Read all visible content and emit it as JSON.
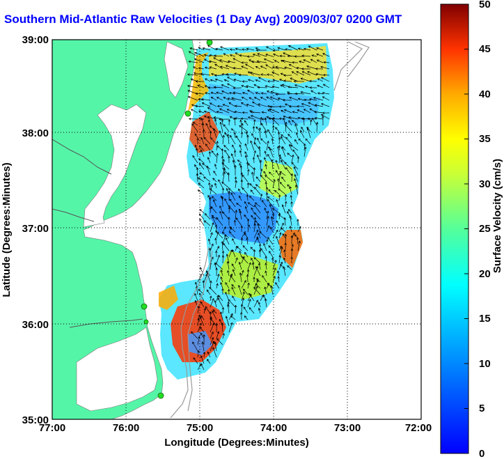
{
  "title": "Southern Mid-Atlantic Raw Velocities (1 Day Avg) 2009/03/07 0200 GMT",
  "x_axis": {
    "label": "Longitude (Degrees:Minutes)",
    "ticks": [
      "77:00",
      "76:00",
      "75:00",
      "74:00",
      "73:00",
      "72:00"
    ]
  },
  "y_axis": {
    "label": "Latitude (Degrees:Minutes)",
    "ticks": [
      "39:00",
      "38:00",
      "37:00",
      "36:00",
      "35:00"
    ]
  },
  "colorbar": {
    "label": "Surface Velocity (cm/s)",
    "ticks": [
      "50",
      "45",
      "40",
      "35",
      "30",
      "25",
      "20",
      "15",
      "10",
      "5",
      "0"
    ],
    "range": [
      0,
      50
    ],
    "colormap": "jet"
  },
  "colors": {
    "land": "#55f5a8",
    "title": "#0000ff",
    "grid": "#000000",
    "station": "#22dd22"
  },
  "map": {
    "lon_range": [
      -77,
      -72
    ],
    "lat_range": [
      35,
      39
    ],
    "grid": "dotted",
    "stations": 5
  }
}
